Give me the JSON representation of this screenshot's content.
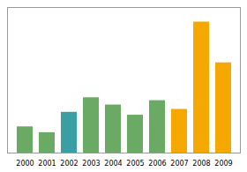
{
  "chart_data": {
    "type": "bar",
    "categories": [
      "2000",
      "2001",
      "2002",
      "2003",
      "2004",
      "2005",
      "2006",
      "2007",
      "2008",
      "2009"
    ],
    "values": [
      18,
      14,
      28,
      38,
      33,
      26,
      36,
      30,
      90,
      62
    ],
    "colors": [
      "#6aaa64",
      "#6aaa64",
      "#3a9ea5",
      "#6aaa64",
      "#6aaa64",
      "#6aaa64",
      "#6aaa64",
      "#f5a800",
      "#f5a800",
      "#f5a800"
    ],
    "ylim": [
      0,
      100
    ],
    "yticks": [],
    "grid": false,
    "tick_labels": "x"
  }
}
